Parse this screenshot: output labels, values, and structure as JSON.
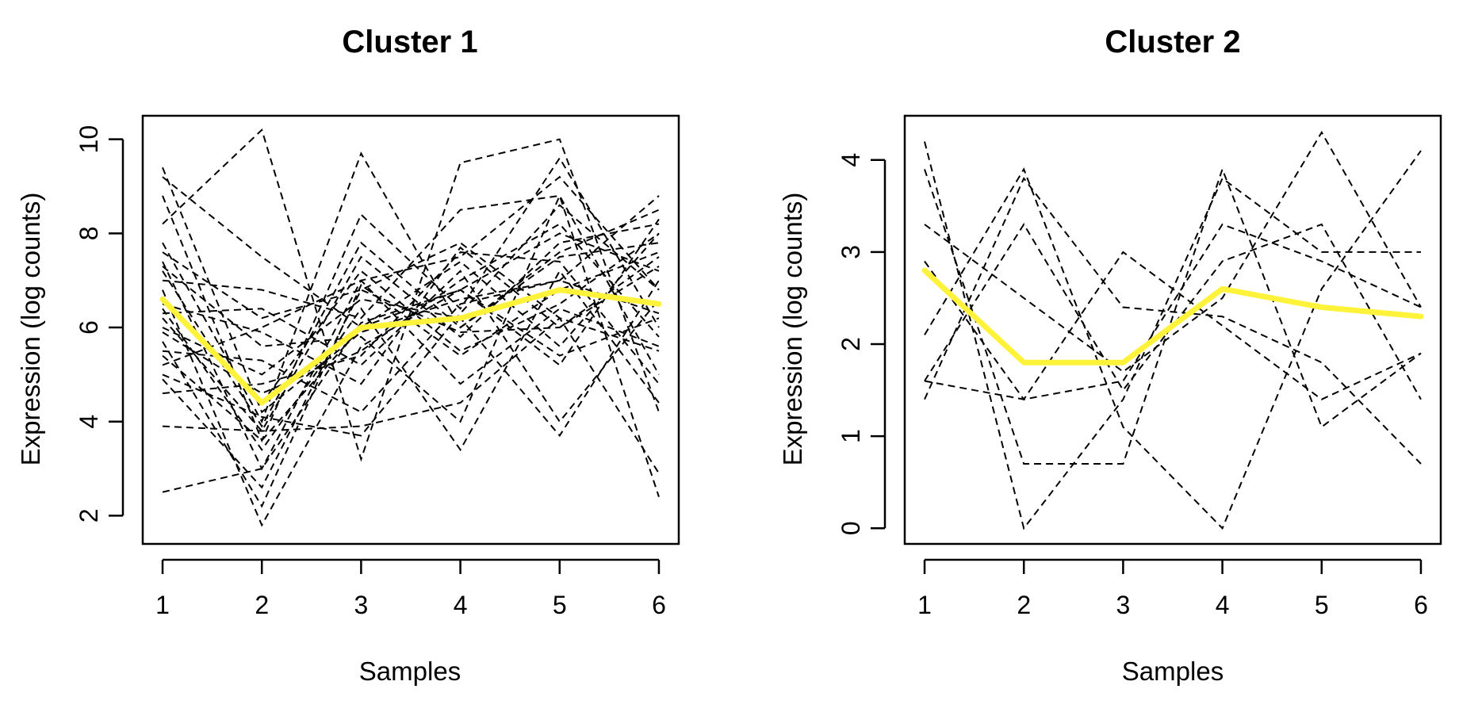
{
  "chart_data": [
    {
      "type": "line",
      "title": "Cluster  1",
      "xlabel": "Samples",
      "ylabel": "Expression (log counts)",
      "x": [
        1,
        2,
        3,
        4,
        5,
        6
      ],
      "xlim": [
        0.8,
        6.2
      ],
      "ylim": [
        1.4,
        10.5
      ],
      "xticks": [
        1,
        2,
        3,
        4,
        5,
        6
      ],
      "yticks": [
        2,
        4,
        6,
        8,
        10
      ],
      "grid": false,
      "colors": {
        "profile": "#000000",
        "centroid": "#FFF23A"
      },
      "centroid": [
        6.6,
        4.4,
        6.0,
        6.2,
        6.8,
        6.5
      ],
      "series": [
        {
          "values": [
            9.4,
            4.2,
            5.9,
            6.6,
            7.0,
            8.8
          ]
        },
        {
          "values": [
            9.2,
            7.5,
            6.0,
            6.8,
            8.0,
            7.2
          ]
        },
        {
          "values": [
            8.8,
            3.6,
            8.4,
            6.4,
            9.6,
            6.0
          ]
        },
        {
          "values": [
            8.2,
            10.2,
            3.2,
            9.5,
            10.0,
            4.2
          ]
        },
        {
          "values": [
            7.8,
            4.0,
            9.7,
            6.0,
            7.6,
            8.5
          ]
        },
        {
          "values": [
            7.6,
            6.2,
            6.8,
            7.8,
            6.2,
            5.5
          ]
        },
        {
          "values": [
            7.4,
            3.0,
            7.0,
            7.5,
            9.2,
            6.8
          ]
        },
        {
          "values": [
            7.3,
            5.6,
            5.8,
            4.0,
            8.8,
            2.4
          ]
        },
        {
          "values": [
            7.2,
            3.9,
            7.8,
            6.0,
            7.5,
            7.8
          ]
        },
        {
          "values": [
            7.0,
            6.8,
            6.2,
            8.5,
            8.8,
            5.0
          ]
        },
        {
          "values": [
            6.8,
            1.8,
            5.6,
            6.8,
            5.4,
            6.2
          ]
        },
        {
          "values": [
            6.6,
            4.4,
            7.2,
            5.5,
            6.5,
            8.0
          ]
        },
        {
          "values": [
            6.5,
            5.9,
            4.8,
            7.7,
            6.0,
            7.5
          ]
        },
        {
          "values": [
            6.4,
            3.4,
            6.4,
            3.4,
            7.2,
            4.4
          ]
        },
        {
          "values": [
            6.3,
            6.4,
            5.2,
            7.2,
            4.0,
            6.6
          ]
        },
        {
          "values": [
            6.2,
            3.8,
            7.5,
            5.8,
            7.8,
            8.2
          ]
        },
        {
          "values": [
            6.0,
            5.0,
            6.6,
            6.2,
            3.7,
            7.0
          ]
        },
        {
          "values": [
            5.9,
            4.6,
            5.5,
            7.0,
            8.2,
            5.8
          ]
        },
        {
          "values": [
            5.7,
            2.2,
            6.9,
            5.4,
            6.8,
            7.6
          ]
        },
        {
          "values": [
            5.5,
            5.3,
            4.2,
            6.5,
            7.0,
            6.3
          ]
        },
        {
          "values": [
            5.4,
            3.6,
            6.0,
            7.4,
            5.6,
            8.0
          ]
        },
        {
          "values": [
            5.2,
            6.0,
            7.0,
            4.8,
            6.4,
            5.6
          ]
        },
        {
          "values": [
            5.0,
            4.1,
            3.7,
            6.3,
            8.6,
            6.8
          ]
        },
        {
          "values": [
            4.9,
            2.6,
            6.8,
            5.9,
            6.0,
            7.3
          ]
        },
        {
          "values": [
            4.6,
            4.8,
            5.4,
            7.6,
            7.4,
            4.8
          ]
        },
        {
          "values": [
            3.9,
            3.8,
            3.9,
            4.4,
            6.2,
            2.9
          ]
        },
        {
          "values": [
            2.5,
            3.0,
            6.1,
            6.8,
            5.2,
            8.3
          ]
        }
      ]
    },
    {
      "type": "line",
      "title": "Cluster  2",
      "xlabel": "Samples",
      "ylabel": "Expression (log counts)",
      "x": [
        1,
        2,
        3,
        4,
        5,
        6
      ],
      "xlim": [
        0.8,
        6.2
      ],
      "ylim": [
        -0.17,
        4.48
      ],
      "xticks": [
        1,
        2,
        3,
        4,
        5,
        6
      ],
      "yticks": [
        0,
        1,
        2,
        3,
        4
      ],
      "grid": false,
      "colors": {
        "profile": "#000000",
        "centroid": "#FFF23A"
      },
      "centroid": [
        2.8,
        1.8,
        1.8,
        2.6,
        2.4,
        2.3
      ],
      "series": [
        {
          "values": [
            4.2,
            0.0,
            1.4,
            3.8,
            3.0,
            3.0
          ]
        },
        {
          "values": [
            3.9,
            0.7,
            0.7,
            3.9,
            1.1,
            1.9
          ]
        },
        {
          "values": [
            3.3,
            2.5,
            1.7,
            2.5,
            4.3,
            2.4
          ]
        },
        {
          "values": [
            2.9,
            1.4,
            3.0,
            2.2,
            1.4,
            1.9
          ]
        },
        {
          "values": [
            2.1,
            3.9,
            1.1,
            0.0,
            2.6,
            4.1
          ]
        },
        {
          "values": [
            1.6,
            3.3,
            1.5,
            2.9,
            3.3,
            1.4
          ]
        },
        {
          "values": [
            1.4,
            3.8,
            2.4,
            2.3,
            1.8,
            0.7
          ]
        },
        {
          "values": [
            1.6,
            1.4,
            1.6,
            3.3,
            2.9,
            2.4
          ]
        }
      ]
    }
  ]
}
